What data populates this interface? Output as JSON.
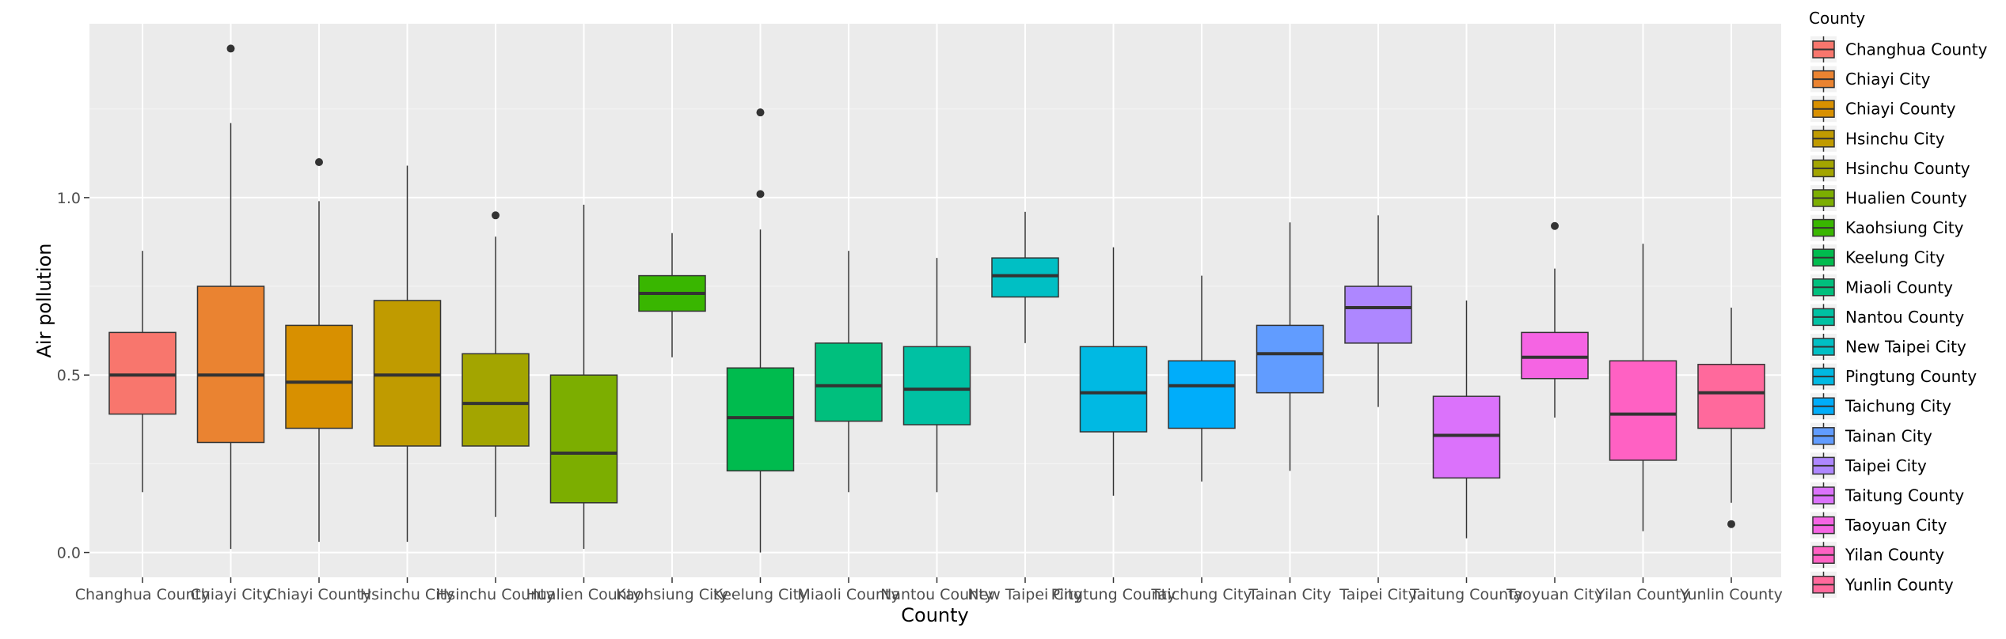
{
  "chart_data": {
    "type": "boxplot",
    "xlabel": "County",
    "ylabel": "Air pollution",
    "ylim": [
      -0.07,
      1.49
    ],
    "yticks": [
      0.0,
      0.5,
      1.0
    ],
    "ytick_labels": [
      "0.0",
      "0.5",
      "1.0"
    ],
    "grid": true,
    "legend": {
      "title": "County",
      "position": "right"
    },
    "series": [
      {
        "name": "Changhua County",
        "color": "#F8766D",
        "whisker_low": 0.17,
        "q1": 0.39,
        "median": 0.5,
        "q3": 0.62,
        "whisker_high": 0.85,
        "outliers": []
      },
      {
        "name": "Chiayi City",
        "color": "#EA8331",
        "whisker_low": 0.01,
        "q1": 0.31,
        "median": 0.5,
        "q3": 0.75,
        "whisker_high": 1.21,
        "outliers": [
          1.42
        ]
      },
      {
        "name": "Chiayi County",
        "color": "#D89000",
        "whisker_low": 0.03,
        "q1": 0.35,
        "median": 0.48,
        "q3": 0.64,
        "whisker_high": 0.99,
        "outliers": [
          1.1
        ]
      },
      {
        "name": "Hsinchu City",
        "color": "#C09B00",
        "whisker_low": 0.03,
        "q1": 0.3,
        "median": 0.5,
        "q3": 0.71,
        "whisker_high": 1.09,
        "outliers": []
      },
      {
        "name": "Hsinchu County",
        "color": "#A3A500",
        "whisker_low": 0.1,
        "q1": 0.3,
        "median": 0.42,
        "q3": 0.56,
        "whisker_high": 0.89,
        "outliers": [
          0.95
        ]
      },
      {
        "name": "Hualien County",
        "color": "#7CAE00",
        "whisker_low": 0.01,
        "q1": 0.14,
        "median": 0.28,
        "q3": 0.5,
        "whisker_high": 0.98,
        "outliers": []
      },
      {
        "name": "Kaohsiung City",
        "color": "#39B600",
        "whisker_low": 0.55,
        "q1": 0.68,
        "median": 0.73,
        "q3": 0.78,
        "whisker_high": 0.9,
        "outliers": []
      },
      {
        "name": "Keelung City",
        "color": "#00BB4E",
        "whisker_low": 0.0,
        "q1": 0.23,
        "median": 0.38,
        "q3": 0.52,
        "whisker_high": 0.91,
        "outliers": [
          1.01,
          1.24
        ]
      },
      {
        "name": "Miaoli County",
        "color": "#00BF7D",
        "whisker_low": 0.17,
        "q1": 0.37,
        "median": 0.47,
        "q3": 0.59,
        "whisker_high": 0.85,
        "outliers": []
      },
      {
        "name": "Nantou County",
        "color": "#00C1A3",
        "whisker_low": 0.17,
        "q1": 0.36,
        "median": 0.46,
        "q3": 0.58,
        "whisker_high": 0.83,
        "outliers": []
      },
      {
        "name": "New Taipei City",
        "color": "#00BFC4",
        "whisker_low": 0.59,
        "q1": 0.72,
        "median": 0.78,
        "q3": 0.83,
        "whisker_high": 0.96,
        "outliers": []
      },
      {
        "name": "Pingtung County",
        "color": "#00B9E3",
        "whisker_low": 0.16,
        "q1": 0.34,
        "median": 0.45,
        "q3": 0.58,
        "whisker_high": 0.86,
        "outliers": []
      },
      {
        "name": "Taichung City",
        "color": "#00ADFA",
        "whisker_low": 0.2,
        "q1": 0.35,
        "median": 0.47,
        "q3": 0.54,
        "whisker_high": 0.78,
        "outliers": []
      },
      {
        "name": "Tainan City",
        "color": "#619CFF",
        "whisker_low": 0.23,
        "q1": 0.45,
        "median": 0.56,
        "q3": 0.64,
        "whisker_high": 0.93,
        "outliers": []
      },
      {
        "name": "Taipei City",
        "color": "#AE87FF",
        "whisker_low": 0.41,
        "q1": 0.59,
        "median": 0.69,
        "q3": 0.75,
        "whisker_high": 0.95,
        "outliers": []
      },
      {
        "name": "Taitung County",
        "color": "#DB72FB",
        "whisker_low": 0.04,
        "q1": 0.21,
        "median": 0.33,
        "q3": 0.44,
        "whisker_high": 0.71,
        "outliers": []
      },
      {
        "name": "Taoyuan City",
        "color": "#F564E3",
        "whisker_low": 0.38,
        "q1": 0.49,
        "median": 0.55,
        "q3": 0.62,
        "whisker_high": 0.8,
        "outliers": [
          0.92
        ]
      },
      {
        "name": "Yilan County",
        "color": "#FF61C3",
        "whisker_low": 0.06,
        "q1": 0.26,
        "median": 0.39,
        "q3": 0.54,
        "whisker_high": 0.87,
        "outliers": []
      },
      {
        "name": "Yunlin County",
        "color": "#FF699C",
        "whisker_low": 0.14,
        "q1": 0.35,
        "median": 0.45,
        "q3": 0.53,
        "whisker_high": 0.69,
        "outliers": [
          0.08
        ]
      }
    ]
  }
}
